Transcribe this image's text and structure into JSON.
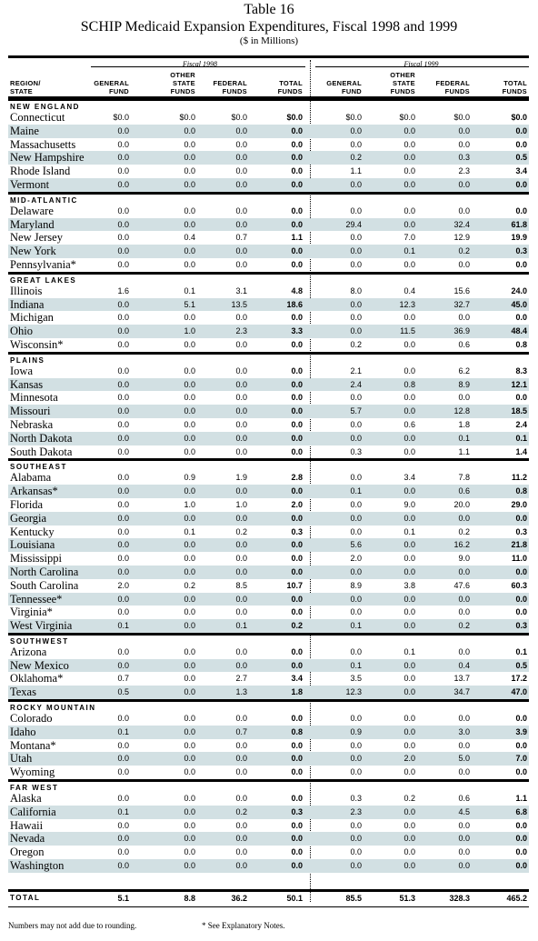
{
  "title": {
    "line1": "Table 16",
    "line2": "SCHIP Medicaid Expansion Expenditures, Fiscal 1998 and 1999",
    "line3": "($ in Millions)"
  },
  "headers": {
    "fiscal1998": "Fiscal 1998",
    "fiscal1999": "Fiscal 1999",
    "region_state": "REGION/\nSTATE",
    "general_fund": "GENERAL\nFUND",
    "other_state_funds": "OTHER\nSTATE\nFUNDS",
    "federal_funds": "FEDERAL\nFUNDS",
    "total_funds": "TOTAL\nFUNDS"
  },
  "regions": [
    {
      "name": "NEW ENGLAND",
      "states": [
        {
          "name": "Connecticut",
          "v": [
            "$0.0",
            "$0.0",
            "$0.0",
            "$0.0",
            "$0.0",
            "$0.0",
            "$0.0",
            "$0.0"
          ]
        },
        {
          "name": "Maine",
          "v": [
            "0.0",
            "0.0",
            "0.0",
            "0.0",
            "0.0",
            "0.0",
            "0.0",
            "0.0"
          ]
        },
        {
          "name": "Massachusetts",
          "v": [
            "0.0",
            "0.0",
            "0.0",
            "0.0",
            "0.0",
            "0.0",
            "0.0",
            "0.0"
          ]
        },
        {
          "name": "New Hampshire",
          "v": [
            "0.0",
            "0.0",
            "0.0",
            "0.0",
            "0.2",
            "0.0",
            "0.3",
            "0.5"
          ]
        },
        {
          "name": "Rhode Island",
          "v": [
            "0.0",
            "0.0",
            "0.0",
            "0.0",
            "1.1",
            "0.0",
            "2.3",
            "3.4"
          ]
        },
        {
          "name": "Vermont",
          "v": [
            "0.0",
            "0.0",
            "0.0",
            "0.0",
            "0.0",
            "0.0",
            "0.0",
            "0.0"
          ]
        }
      ]
    },
    {
      "name": "MID-ATLANTIC",
      "states": [
        {
          "name": "Delaware",
          "v": [
            "0.0",
            "0.0",
            "0.0",
            "0.0",
            "0.0",
            "0.0",
            "0.0",
            "0.0"
          ]
        },
        {
          "name": "Maryland",
          "v": [
            "0.0",
            "0.0",
            "0.0",
            "0.0",
            "29.4",
            "0.0",
            "32.4",
            "61.8"
          ]
        },
        {
          "name": "New Jersey",
          "v": [
            "0.0",
            "0.4",
            "0.7",
            "1.1",
            "0.0",
            "7.0",
            "12.9",
            "19.9"
          ]
        },
        {
          "name": "New York",
          "v": [
            "0.0",
            "0.0",
            "0.0",
            "0.0",
            "0.0",
            "0.1",
            "0.2",
            "0.3"
          ]
        },
        {
          "name": "Pennsylvania*",
          "v": [
            "0.0",
            "0.0",
            "0.0",
            "0.0",
            "0.0",
            "0.0",
            "0.0",
            "0.0"
          ]
        }
      ]
    },
    {
      "name": "GREAT LAKES",
      "states": [
        {
          "name": "Illinois",
          "v": [
            "1.6",
            "0.1",
            "3.1",
            "4.8",
            "8.0",
            "0.4",
            "15.6",
            "24.0"
          ]
        },
        {
          "name": "Indiana",
          "v": [
            "0.0",
            "5.1",
            "13.5",
            "18.6",
            "0.0",
            "12.3",
            "32.7",
            "45.0"
          ]
        },
        {
          "name": "Michigan",
          "v": [
            "0.0",
            "0.0",
            "0.0",
            "0.0",
            "0.0",
            "0.0",
            "0.0",
            "0.0"
          ]
        },
        {
          "name": "Ohio",
          "v": [
            "0.0",
            "1.0",
            "2.3",
            "3.3",
            "0.0",
            "11.5",
            "36.9",
            "48.4"
          ]
        },
        {
          "name": "Wisconsin*",
          "v": [
            "0.0",
            "0.0",
            "0.0",
            "0.0",
            "0.2",
            "0.0",
            "0.6",
            "0.8"
          ]
        }
      ]
    },
    {
      "name": "PLAINS",
      "states": [
        {
          "name": "Iowa",
          "v": [
            "0.0",
            "0.0",
            "0.0",
            "0.0",
            "2.1",
            "0.0",
            "6.2",
            "8.3"
          ]
        },
        {
          "name": "Kansas",
          "v": [
            "0.0",
            "0.0",
            "0.0",
            "0.0",
            "2.4",
            "0.8",
            "8.9",
            "12.1"
          ]
        },
        {
          "name": "Minnesota",
          "v": [
            "0.0",
            "0.0",
            "0.0",
            "0.0",
            "0.0",
            "0.0",
            "0.0",
            "0.0"
          ]
        },
        {
          "name": "Missouri",
          "v": [
            "0.0",
            "0.0",
            "0.0",
            "0.0",
            "5.7",
            "0.0",
            "12.8",
            "18.5"
          ]
        },
        {
          "name": "Nebraska",
          "v": [
            "0.0",
            "0.0",
            "0.0",
            "0.0",
            "0.0",
            "0.6",
            "1.8",
            "2.4"
          ]
        },
        {
          "name": "North Dakota",
          "v": [
            "0.0",
            "0.0",
            "0.0",
            "0.0",
            "0.0",
            "0.0",
            "0.1",
            "0.1"
          ]
        },
        {
          "name": "South Dakota",
          "v": [
            "0.0",
            "0.0",
            "0.0",
            "0.0",
            "0.3",
            "0.0",
            "1.1",
            "1.4"
          ]
        }
      ]
    },
    {
      "name": "SOUTHEAST",
      "states": [
        {
          "name": "Alabama",
          "v": [
            "0.0",
            "0.9",
            "1.9",
            "2.8",
            "0.0",
            "3.4",
            "7.8",
            "11.2"
          ]
        },
        {
          "name": "Arkansas*",
          "v": [
            "0.0",
            "0.0",
            "0.0",
            "0.0",
            "0.1",
            "0.0",
            "0.6",
            "0.8"
          ]
        },
        {
          "name": "Florida",
          "v": [
            "0.0",
            "1.0",
            "1.0",
            "2.0",
            "0.0",
            "9.0",
            "20.0",
            "29.0"
          ]
        },
        {
          "name": "Georgia",
          "v": [
            "0.0",
            "0.0",
            "0.0",
            "0.0",
            "0.0",
            "0.0",
            "0.0",
            "0.0"
          ]
        },
        {
          "name": "Kentucky",
          "v": [
            "0.0",
            "0.1",
            "0.2",
            "0.3",
            "0.0",
            "0.1",
            "0.2",
            "0.3"
          ]
        },
        {
          "name": "Louisiana",
          "v": [
            "0.0",
            "0.0",
            "0.0",
            "0.0",
            "5.6",
            "0.0",
            "16.2",
            "21.8"
          ]
        },
        {
          "name": "Mississippi",
          "v": [
            "0.0",
            "0.0",
            "0.0",
            "0.0",
            "2.0",
            "0.0",
            "9.0",
            "11.0"
          ]
        },
        {
          "name": "North Carolina",
          "v": [
            "0.0",
            "0.0",
            "0.0",
            "0.0",
            "0.0",
            "0.0",
            "0.0",
            "0.0"
          ]
        },
        {
          "name": "South Carolina",
          "v": [
            "2.0",
            "0.2",
            "8.5",
            "10.7",
            "8.9",
            "3.8",
            "47.6",
            "60.3"
          ]
        },
        {
          "name": "Tennessee*",
          "v": [
            "0.0",
            "0.0",
            "0.0",
            "0.0",
            "0.0",
            "0.0",
            "0.0",
            "0.0"
          ]
        },
        {
          "name": "Virginia*",
          "v": [
            "0.0",
            "0.0",
            "0.0",
            "0.0",
            "0.0",
            "0.0",
            "0.0",
            "0.0"
          ]
        },
        {
          "name": "West Virginia",
          "v": [
            "0.1",
            "0.0",
            "0.1",
            "0.2",
            "0.1",
            "0.0",
            "0.2",
            "0.3"
          ]
        }
      ]
    },
    {
      "name": "SOUTHWEST",
      "states": [
        {
          "name": "Arizona",
          "v": [
            "0.0",
            "0.0",
            "0.0",
            "0.0",
            "0.0",
            "0.1",
            "0.0",
            "0.1"
          ]
        },
        {
          "name": "New Mexico",
          "v": [
            "0.0",
            "0.0",
            "0.0",
            "0.0",
            "0.1",
            "0.0",
            "0.4",
            "0.5"
          ]
        },
        {
          "name": "Oklahoma*",
          "v": [
            "0.7",
            "0.0",
            "2.7",
            "3.4",
            "3.5",
            "0.0",
            "13.7",
            "17.2"
          ]
        },
        {
          "name": "Texas",
          "v": [
            "0.5",
            "0.0",
            "1.3",
            "1.8",
            "12.3",
            "0.0",
            "34.7",
            "47.0"
          ]
        }
      ]
    },
    {
      "name": "ROCKY MOUNTAIN",
      "states": [
        {
          "name": "Colorado",
          "v": [
            "0.0",
            "0.0",
            "0.0",
            "0.0",
            "0.0",
            "0.0",
            "0.0",
            "0.0"
          ]
        },
        {
          "name": "Idaho",
          "v": [
            "0.1",
            "0.0",
            "0.7",
            "0.8",
            "0.9",
            "0.0",
            "3.0",
            "3.9"
          ]
        },
        {
          "name": "Montana*",
          "v": [
            "0.0",
            "0.0",
            "0.0",
            "0.0",
            "0.0",
            "0.0",
            "0.0",
            "0.0"
          ]
        },
        {
          "name": "Utah",
          "v": [
            "0.0",
            "0.0",
            "0.0",
            "0.0",
            "0.0",
            "2.0",
            "5.0",
            "7.0"
          ]
        },
        {
          "name": "Wyoming",
          "v": [
            "0.0",
            "0.0",
            "0.0",
            "0.0",
            "0.0",
            "0.0",
            "0.0",
            "0.0"
          ]
        }
      ]
    },
    {
      "name": "FAR WEST",
      "states": [
        {
          "name": "Alaska",
          "v": [
            "0.0",
            "0.0",
            "0.0",
            "0.0",
            "0.3",
            "0.2",
            "0.6",
            "1.1"
          ]
        },
        {
          "name": "California",
          "v": [
            "0.1",
            "0.0",
            "0.2",
            "0.3",
            "2.3",
            "0.0",
            "4.5",
            "6.8"
          ]
        },
        {
          "name": "Hawaii",
          "v": [
            "0.0",
            "0.0",
            "0.0",
            "0.0",
            "0.0",
            "0.0",
            "0.0",
            "0.0"
          ]
        },
        {
          "name": "Nevada",
          "v": [
            "0.0",
            "0.0",
            "0.0",
            "0.0",
            "0.0",
            "0.0",
            "0.0",
            "0.0"
          ]
        },
        {
          "name": "Oregon",
          "v": [
            "0.0",
            "0.0",
            "0.0",
            "0.0",
            "0.0",
            "0.0",
            "0.0",
            "0.0"
          ]
        },
        {
          "name": "Washington",
          "v": [
            "0.0",
            "0.0",
            "0.0",
            "0.0",
            "0.0",
            "0.0",
            "0.0",
            "0.0"
          ]
        }
      ]
    }
  ],
  "total": {
    "label": "TOTAL",
    "v": [
      "5.1",
      "8.8",
      "36.2",
      "50.1",
      "85.5",
      "51.3",
      "328.3",
      "465.2"
    ]
  },
  "footer": {
    "note_rounding": "Numbers may not add due to rounding.",
    "note_explanatory": "* See Explanatory Notes."
  }
}
